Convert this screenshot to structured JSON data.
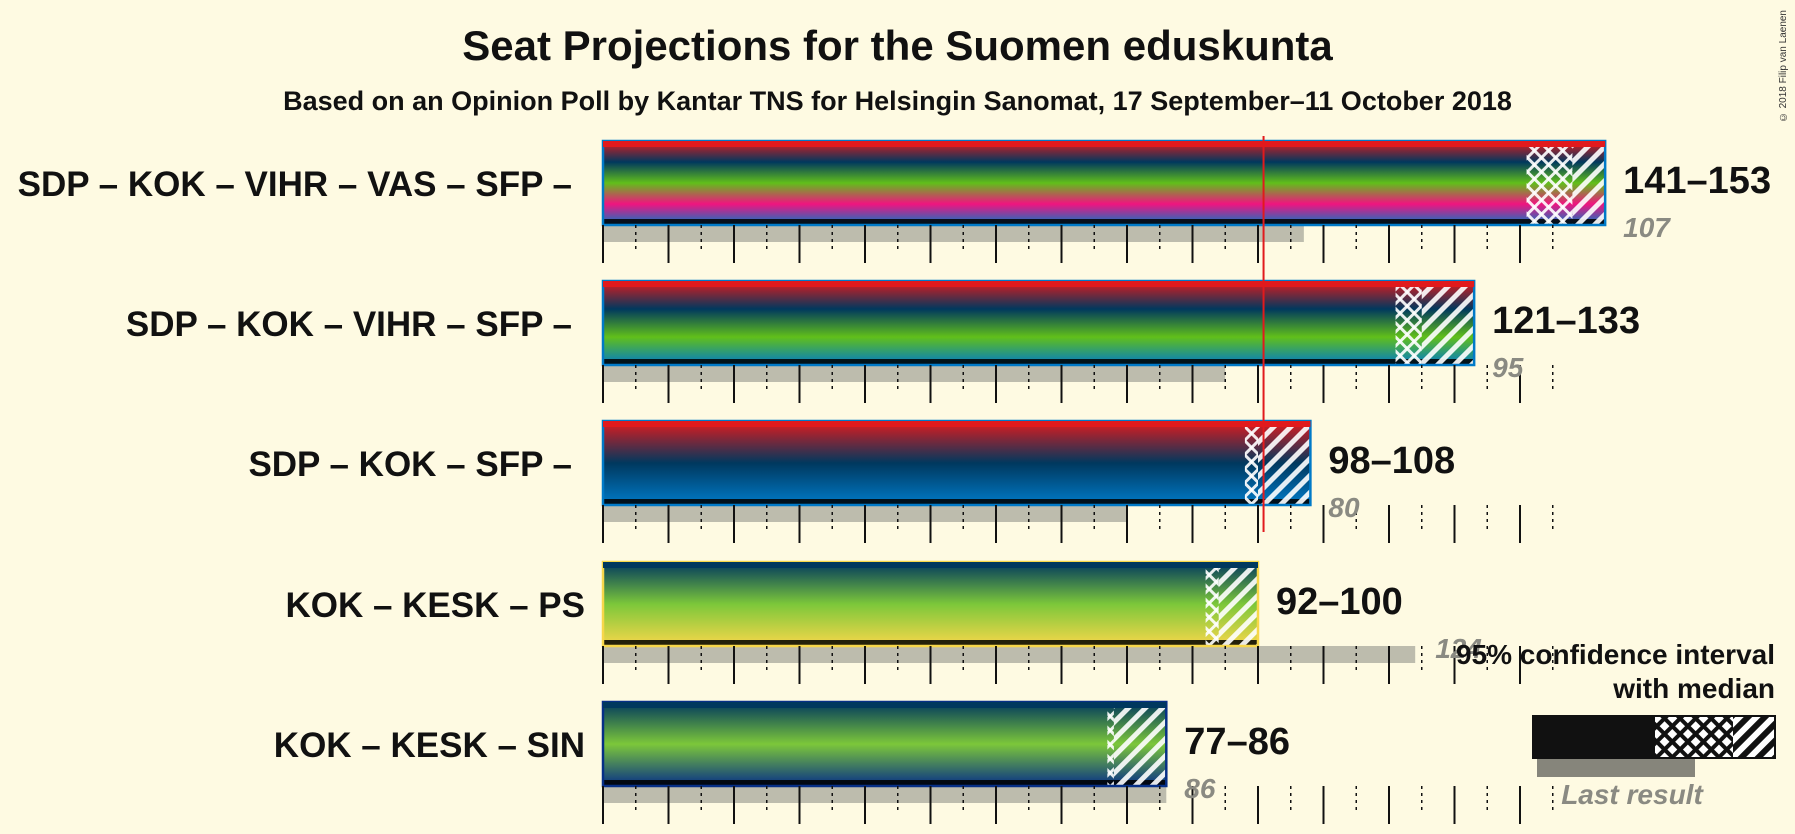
{
  "title": "Seat Projections for the Suomen eduskunta",
  "subtitle": "Based on an Opinion Poll by Kantar TNS for Helsingin Sanomat, 17 September–11 October 2018",
  "copyright": "© 2018 Filip van Laenen",
  "majority": 101,
  "party_colors": {
    "SDP": "#e11a1d",
    "KOK": "#00385e",
    "VIHR": "#61bf1a",
    "VAS": "#f0147f",
    "SFP": "#007ac8",
    "KESK": "#7cc73a",
    "PS": "#f7d74a",
    "SIN": "#062f87"
  },
  "legend": {
    "line1": "95% confidence interval",
    "line2": "with median",
    "last_result": "Last result"
  },
  "chart_data": {
    "type": "bar",
    "title": "Seat Projections for the Suomen eduskunta",
    "x_axis": {
      "min": 0,
      "max": 200,
      "unit": "seats",
      "grid": true
    },
    "coalitions": [
      {
        "label": "SDP – KOK – VIHR – VAS – SFP –",
        "parties": [
          "SDP",
          "KOK",
          "VIHR",
          "VAS",
          "SFP"
        ],
        "low": 141,
        "median": 148,
        "high": 153,
        "range_text": "141–153",
        "last": 107,
        "last_text": "107"
      },
      {
        "label": "SDP – KOK – VIHR – SFP –",
        "parties": [
          "SDP",
          "KOK",
          "VIHR",
          "SFP"
        ],
        "low": 121,
        "median": 125,
        "high": 133,
        "range_text": "121–133",
        "last": 95,
        "last_text": "95"
      },
      {
        "label": "SDP – KOK – SFP –",
        "parties": [
          "SDP",
          "KOK",
          "SFP"
        ],
        "low": 98,
        "median": 100,
        "high": 108,
        "range_text": "98–108",
        "last": 80,
        "last_text": "80"
      },
      {
        "label": "KOK – KESK – PS",
        "parties": [
          "KOK",
          "KESK",
          "PS"
        ],
        "low": 92,
        "median": 94,
        "high": 100,
        "range_text": "92–100",
        "last": 124,
        "last_text": "124"
      },
      {
        "label": "KOK – KESK – SIN",
        "parties": [
          "KOK",
          "KESK",
          "SIN"
        ],
        "low": 77,
        "median": 78,
        "high": 86,
        "range_text": "77–86",
        "last": 86,
        "last_text": "86"
      }
    ]
  }
}
